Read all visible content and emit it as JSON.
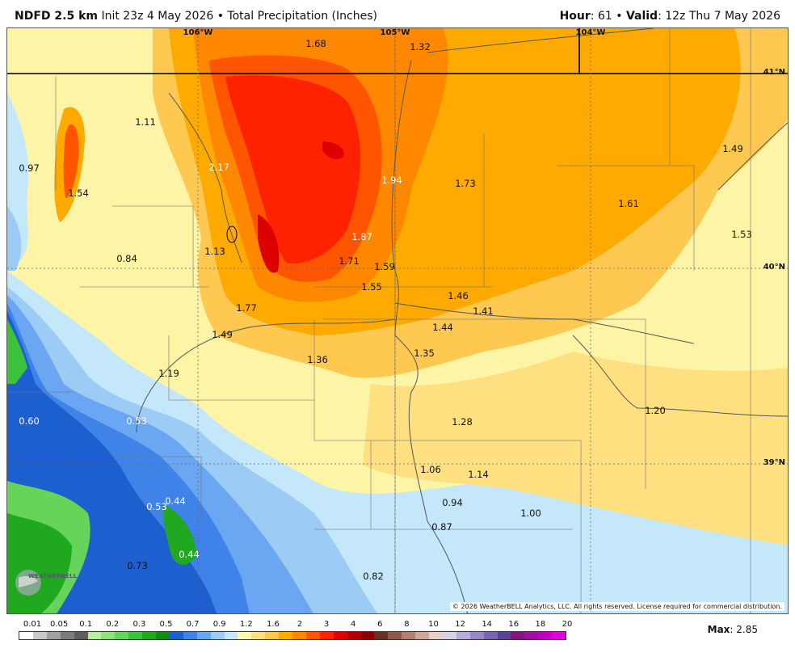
{
  "header": {
    "model": "NDFD 2.5 km",
    "init": "Init 23z 4 May 2026",
    "bullet": "•",
    "title": "Total Precipitation (Inches)",
    "hour_label": "Hour",
    "hour_value": ": 61",
    "valid_label": "Valid",
    "valid_value": ": 12z Thu 7 May 2026"
  },
  "map": {
    "lon_labels": [
      "106°W",
      "105°W",
      "104°W"
    ],
    "lat_labels": [
      "41°N",
      "40°N",
      "39°N"
    ],
    "values": [
      {
        "text": "1.68",
        "light": false
      },
      {
        "text": "1.32",
        "light": false
      },
      {
        "text": "1.11",
        "light": false
      },
      {
        "text": "0.97",
        "light": false
      },
      {
        "text": "1.54",
        "light": false
      },
      {
        "text": "2.17",
        "light": true
      },
      {
        "text": "1.94",
        "light": true
      },
      {
        "text": "1.73",
        "light": false
      },
      {
        "text": "1.49",
        "light": false
      },
      {
        "text": "1.61",
        "light": false
      },
      {
        "text": "1.53",
        "light": false
      },
      {
        "text": "0.84",
        "light": false
      },
      {
        "text": "1.13",
        "light": false
      },
      {
        "text": "1.87",
        "light": true
      },
      {
        "text": "1.71",
        "light": false
      },
      {
        "text": "1.59",
        "light": false
      },
      {
        "text": "1.55",
        "light": false
      },
      {
        "text": "1.46",
        "light": false
      },
      {
        "text": "1.41",
        "light": false
      },
      {
        "text": "1.77",
        "light": false
      },
      {
        "text": "1.49",
        "light": false
      },
      {
        "text": "1.44",
        "light": false
      },
      {
        "text": "1.36",
        "light": false
      },
      {
        "text": "1.35",
        "light": false
      },
      {
        "text": "1.19",
        "light": false
      },
      {
        "text": "1.20",
        "light": false
      },
      {
        "text": "0.60",
        "light": true
      },
      {
        "text": "0.53",
        "light": true
      },
      {
        "text": "1.28",
        "light": false
      },
      {
        "text": "1.06",
        "light": false
      },
      {
        "text": "1.14",
        "light": false
      },
      {
        "text": "0.53",
        "light": true
      },
      {
        "text": "0.44",
        "light": true
      },
      {
        "text": "0.94",
        "light": false
      },
      {
        "text": "1.00",
        "light": false
      },
      {
        "text": "0.87",
        "light": false
      },
      {
        "text": "0.44",
        "light": true
      },
      {
        "text": "0.73",
        "light": false
      },
      {
        "text": "0.82",
        "light": false
      }
    ],
    "copyright": "© 2026 WeatherBELL Analytics, LLC. All rights reserved. License required for commercial distribution.",
    "logo_text": "WEATHERBELL"
  },
  "colorbar": {
    "labels": [
      "0.01",
      "0.05",
      "0.1",
      "0.2",
      "0.3",
      "0.5",
      "0.7",
      "0.9",
      "1.2",
      "1.6",
      "2",
      "3",
      "4",
      "6",
      "8",
      "10",
      "12",
      "14",
      "16",
      "18",
      "20"
    ],
    "colors": [
      "#ffffff",
      "#c8c8c8",
      "#a0a0a0",
      "#7c7c7c",
      "#5e5e5e",
      "#b4f0a0",
      "#8ee27c",
      "#66d45a",
      "#3cc23c",
      "#20a820",
      "#108c10",
      "#1e5fcf",
      "#3f82e8",
      "#6aa6f2",
      "#9ccbf6",
      "#c4e8fa",
      "#fff7b0",
      "#ffe080",
      "#ffc850",
      "#ffaa00",
      "#ff8800",
      "#ff5500",
      "#ff2200",
      "#dd0000",
      "#b00000",
      "#880000",
      "#6a3020",
      "#8c5a48",
      "#b08070",
      "#d0a898",
      "#e8d0c8",
      "#d8d0e8",
      "#b8acd8",
      "#9888c4",
      "#7866b0",
      "#58449c",
      "#801880",
      "#a010a0",
      "#c000c0",
      "#e000e0"
    ],
    "max_label": "Max",
    "max_value": ": 2.85"
  }
}
